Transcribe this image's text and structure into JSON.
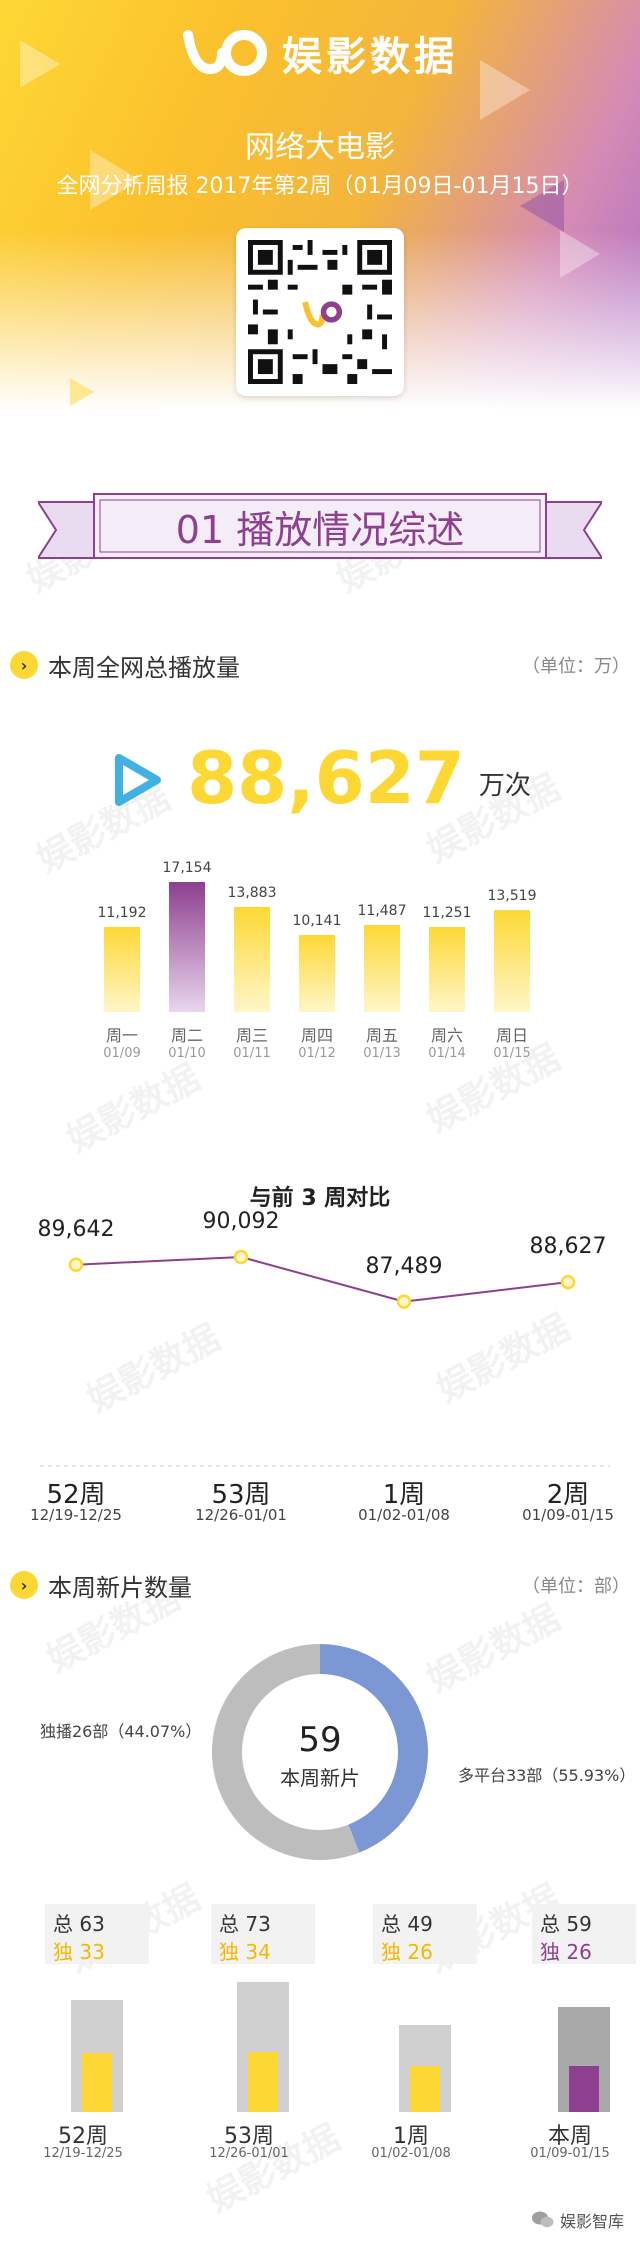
{
  "header": {
    "brand": "娱影数据",
    "title": "网络大电影",
    "subtitle": "全网分析周报 2017年第2周（01月09日-01月15日）",
    "qr_icon": "qr-code-icon"
  },
  "section_banner": {
    "title": "01 播放情况综述"
  },
  "section_plays": {
    "title": "本周全网总播放量",
    "unit": "（单位：万）",
    "total": "88,627",
    "total_unit": "万次",
    "bullet": "›"
  },
  "chart_data": [
    {
      "type": "bar",
      "categories": [
        "周一",
        "周二",
        "周三",
        "周四",
        "周五",
        "周六",
        "周日"
      ],
      "dates": [
        "01/09",
        "01/10",
        "01/11",
        "01/12",
        "01/13",
        "01/14",
        "01/15"
      ],
      "values": [
        11192,
        17154,
        13883,
        10141,
        11487,
        11251,
        13519
      ],
      "value_labels": [
        "11,192",
        "17,154",
        "13,883",
        "10,141",
        "11,487",
        "11,251",
        "13,519"
      ],
      "highlight_index": 1,
      "colors": {
        "normal": "#fdd835",
        "highlight": "#8e3f8f"
      }
    },
    {
      "type": "line",
      "title": "与前 3 周对比",
      "categories": [
        "52周",
        "53周",
        "1周",
        "2周"
      ],
      "ranges": [
        "12/19-12/25",
        "12/26-01/01",
        "01/02-01/08",
        "01/09-01/15"
      ],
      "values": [
        89642,
        90092,
        87489,
        88627
      ],
      "value_labels": [
        "89,642",
        "90,092",
        "87,489",
        "88,627"
      ],
      "colors": {
        "line": "#8e3f8f",
        "point": "#fdd835"
      }
    },
    {
      "type": "pie",
      "center_value": "59",
      "center_label": "本周新片",
      "slices": [
        {
          "label": "独播26部（44.07%）",
          "value": 26,
          "color": "#7b97d4"
        },
        {
          "label": "多平台33部（55.93%）",
          "value": 33,
          "color": "#bdbdbd"
        }
      ]
    },
    {
      "type": "bar",
      "categories": [
        "52周",
        "53周",
        "1周",
        "本周"
      ],
      "ranges": [
        "12/19-12/25",
        "12/26-01/01",
        "01/02-01/08",
        "01/09-01/15"
      ],
      "totals": [
        63,
        73,
        49,
        59
      ],
      "exclusive": [
        33,
        34,
        26,
        26
      ],
      "total_labels": [
        "总 63",
        "总 73",
        "总 49",
        "总 59"
      ],
      "exclusive_labels": [
        "独 33",
        "独 34",
        "独 26",
        "独 26"
      ],
      "colors": {
        "normal": "#fdd835",
        "highlight": "#8e3f8f",
        "outer": "#cfcfcf"
      }
    }
  ],
  "section_new": {
    "title": "本周新片数量",
    "unit": "（单位：部）",
    "bullet": "›"
  },
  "footer": {
    "text": "娱影智库",
    "icon": "wechat-icon"
  },
  "watermark": "娱影数据"
}
